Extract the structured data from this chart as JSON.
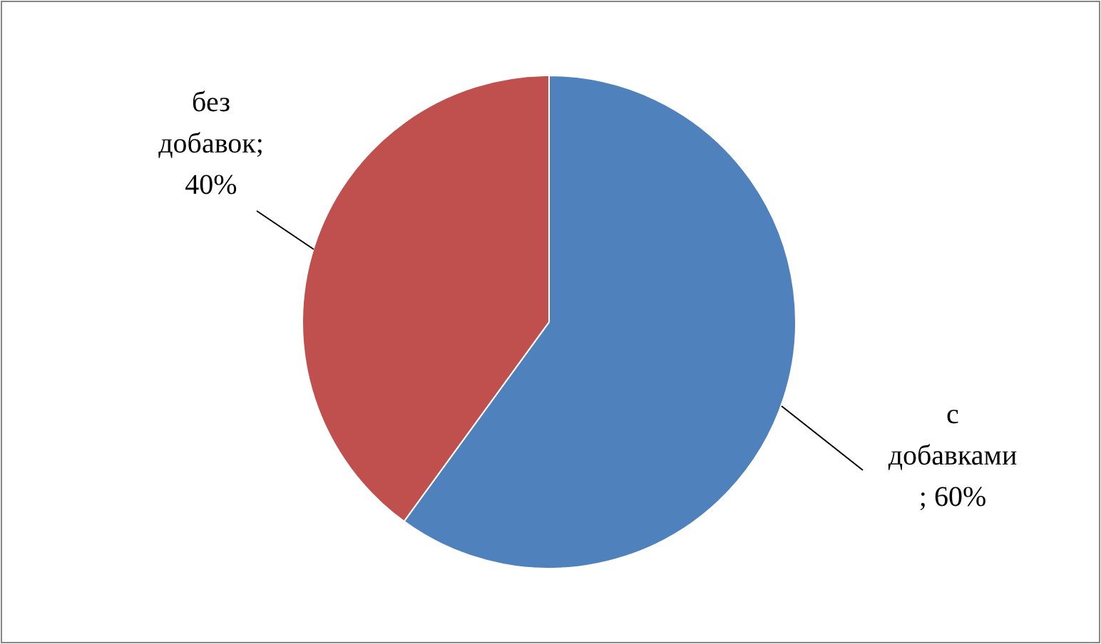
{
  "chart_data": {
    "type": "pie",
    "categories": [
      "с добавками",
      "без добавок"
    ],
    "values": [
      60,
      40
    ],
    "colors": [
      "#4f81bd",
      "#c0504d"
    ],
    "value_labels": [
      "; 60%",
      "; 40%"
    ],
    "legend": false
  }
}
